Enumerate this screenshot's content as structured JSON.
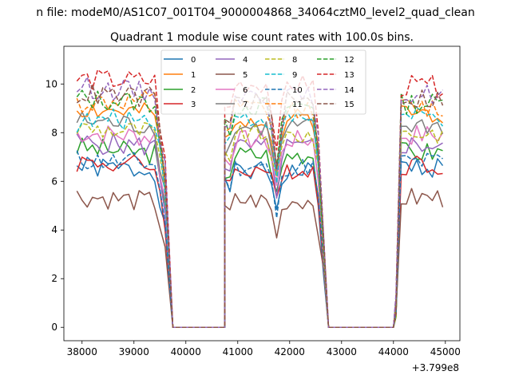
{
  "suptitle": "n file: modeM0/AS1C07_001T04_9000004868_34064cztM0_level2_quad_clean",
  "chart_data": {
    "type": "line",
    "title": "Quadrant 1 module wise count rates with 100.0s bins.",
    "xlabel": "",
    "ylabel": "",
    "x_offset_label": "+3.799e8",
    "xlim": [
      37650,
      45280
    ],
    "ylim": [
      -0.55,
      11.55
    ],
    "xticks": [
      38000,
      39000,
      40000,
      41000,
      42000,
      43000,
      44000,
      45000
    ],
    "xtick_labels": [
      "38000",
      "39000",
      "40000",
      "41000",
      "42000",
      "43000",
      "44000",
      "45000"
    ],
    "yticks": [
      0,
      2,
      4,
      6,
      8,
      10
    ],
    "ytick_labels": [
      "0",
      "2",
      "4",
      "6",
      "8",
      "10"
    ],
    "legend_location": "upper center",
    "series": [
      {
        "name": "0",
        "color": "#1f77b4",
        "dash": "solid",
        "seed": 1,
        "levels": {
          "a": 6.6,
          "b": 6.4,
          "c": 5.0,
          "d": 6.4,
          "e": 6.6
        }
      },
      {
        "name": "1",
        "color": "#ff7f0e",
        "dash": "solid",
        "seed": 2,
        "levels": {
          "a": 9.0,
          "b": 8.7,
          "c": 6.2,
          "d": 8.6,
          "e": 8.8
        }
      },
      {
        "name": "2",
        "color": "#2ca02c",
        "dash": "solid",
        "seed": 3,
        "levels": {
          "a": 7.4,
          "b": 7.1,
          "c": 5.4,
          "d": 7.1,
          "e": 7.2
        }
      },
      {
        "name": "3",
        "color": "#d62728",
        "dash": "solid",
        "seed": 4,
        "levels": {
          "a": 6.8,
          "b": 6.6,
          "c": 5.0,
          "d": 6.5,
          "e": 6.7
        }
      },
      {
        "name": "4",
        "color": "#9467bd",
        "dash": "solid",
        "seed": 5,
        "levels": {
          "a": 7.6,
          "b": 7.4,
          "c": 5.6,
          "d": 7.4,
          "e": 7.5
        }
      },
      {
        "name": "5",
        "color": "#8c564b",
        "dash": "solid",
        "seed": 6,
        "levels": {
          "a": 5.4,
          "b": 5.1,
          "c": 3.8,
          "d": 5.2,
          "e": 5.3
        }
      },
      {
        "name": "6",
        "color": "#e377c2",
        "dash": "solid",
        "seed": 7,
        "levels": {
          "a": 8.0,
          "b": 7.8,
          "c": 5.8,
          "d": 7.7,
          "e": 7.9
        }
      },
      {
        "name": "7",
        "color": "#7f7f7f",
        "dash": "solid",
        "seed": 8,
        "levels": {
          "a": 8.5,
          "b": 8.2,
          "c": 6.1,
          "d": 8.2,
          "e": 8.3
        }
      },
      {
        "name": "8",
        "color": "#bcbd22",
        "dash": "dashed",
        "seed": 9,
        "levels": {
          "a": 8.2,
          "b": 8.0,
          "c": 5.9,
          "d": 7.9,
          "e": 8.0
        }
      },
      {
        "name": "9",
        "color": "#17becf",
        "dash": "dashed",
        "seed": 10,
        "levels": {
          "a": 8.4,
          "b": 8.7,
          "c": 6.2,
          "d": 8.6,
          "e": 8.6
        }
      },
      {
        "name": "10",
        "color": "#1f77b4",
        "dash": "dashed",
        "seed": 11,
        "levels": {
          "a": 6.9,
          "b": 6.7,
          "c": 4.6,
          "d": 6.6,
          "e": 6.8
        }
      },
      {
        "name": "11",
        "color": "#ff7f0e",
        "dash": "dashed",
        "seed": 12,
        "levels": {
          "a": 9.2,
          "b": 9.3,
          "c": 6.5,
          "d": 9.0,
          "e": 9.0
        }
      },
      {
        "name": "12",
        "color": "#2ca02c",
        "dash": "dashed",
        "seed": 13,
        "levels": {
          "a": 9.4,
          "b": 9.2,
          "c": 6.4,
          "d": 9.1,
          "e": 9.2
        }
      },
      {
        "name": "13",
        "color": "#d62728",
        "dash": "dashed",
        "seed": 14,
        "levels": {
          "a": 10.2,
          "b": 10.1,
          "c": 6.9,
          "d": 10.0,
          "e": 9.9
        }
      },
      {
        "name": "14",
        "color": "#9467bd",
        "dash": "dashed",
        "seed": 15,
        "levels": {
          "a": 9.9,
          "b": 9.6,
          "c": 6.7,
          "d": 9.5,
          "e": 9.6
        }
      },
      {
        "name": "15",
        "color": "#8c564b",
        "dash": "dashed",
        "seed": 16,
        "levels": {
          "a": 9.6,
          "b": 9.4,
          "c": 6.6,
          "d": 9.3,
          "e": 9.4
        }
      }
    ],
    "segments": {
      "bin_width": 100,
      "first_on": [
        37900,
        39650
      ],
      "second_on": [
        40750,
        42650
      ],
      "dip_center": 41750,
      "third_on": [
        44050,
        44950
      ],
      "zero_value": 0
    }
  }
}
